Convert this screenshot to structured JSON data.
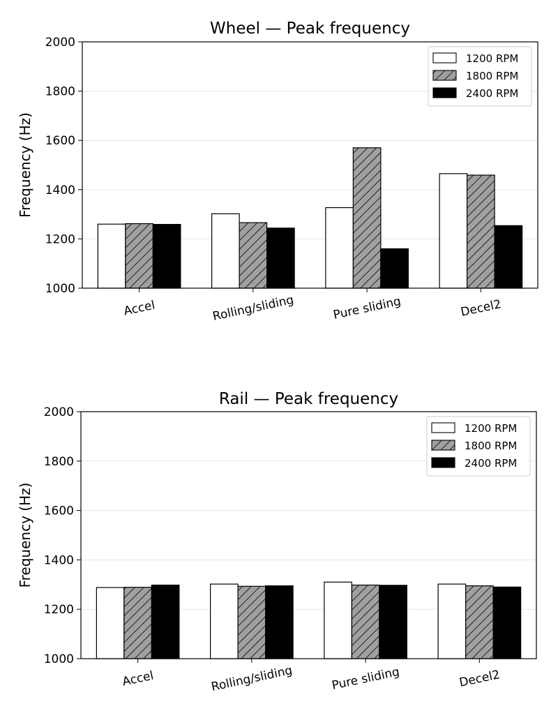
{
  "chart_data": [
    {
      "type": "bar",
      "title": "Wheel — Peak frequency",
      "ylabel": "Frequency (Hz)",
      "xlabel": "",
      "ylim": [
        1000,
        2000
      ],
      "yticks": [
        1000,
        1200,
        1400,
        1600,
        1800,
        2000
      ],
      "grid": "horizontal",
      "legend_position": "top-right",
      "categories": [
        "Accel",
        "Rolling/sliding",
        "Pure sliding",
        "Decel2"
      ],
      "series": [
        {
          "name": "1200 RPM",
          "fill": "#ffffff",
          "hatch": false,
          "values": [
            1260,
            1302,
            1327,
            1465
          ]
        },
        {
          "name": "1800 RPM",
          "fill": "#a0a0a0",
          "hatch": true,
          "values": [
            1262,
            1266,
            1570,
            1459
          ]
        },
        {
          "name": "2400 RPM",
          "fill": "#000000",
          "hatch": false,
          "values": [
            1259,
            1244,
            1160,
            1254
          ]
        }
      ]
    },
    {
      "type": "bar",
      "title": "Rail — Peak frequency",
      "ylabel": "Frequency (Hz)",
      "xlabel": "",
      "ylim": [
        1000,
        2000
      ],
      "yticks": [
        1000,
        1200,
        1400,
        1600,
        1800,
        2000
      ],
      "grid": "horizontal",
      "legend_position": "top-right",
      "categories": [
        "Accel",
        "Rolling/sliding",
        "Pure sliding",
        "Decel2"
      ],
      "series": [
        {
          "name": "1200 RPM",
          "fill": "#ffffff",
          "hatch": false,
          "values": [
            1288,
            1302,
            1310,
            1302
          ]
        },
        {
          "name": "1800 RPM",
          "fill": "#a0a0a0",
          "hatch": true,
          "values": [
            1289,
            1293,
            1298,
            1295
          ]
        },
        {
          "name": "2400 RPM",
          "fill": "#000000",
          "hatch": false,
          "values": [
            1298,
            1295,
            1297,
            1290
          ]
        }
      ]
    }
  ]
}
